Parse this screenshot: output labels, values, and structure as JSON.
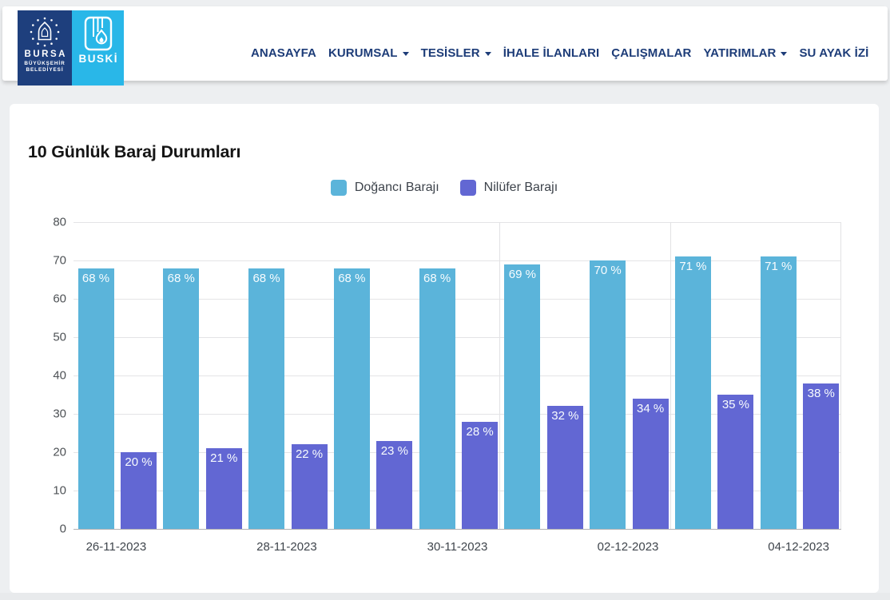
{
  "header": {
    "logo": {
      "bursa": {
        "line1": "BURSA",
        "line2": "BÜYÜKŞEHİR",
        "line3": "BELEDİYESİ",
        "bg_color": "#1e3f7d"
      },
      "buski": {
        "label": "BUSKİ",
        "bg_color": "#29b7e8"
      }
    },
    "nav": {
      "text_color": "#1d3c78",
      "items": [
        {
          "name": "nav-anasayfa",
          "label": "ANASAYFA",
          "has_dropdown": false
        },
        {
          "name": "nav-kurumsal",
          "label": "KURUMSAL",
          "has_dropdown": true
        },
        {
          "name": "nav-tesisler",
          "label": "TESİSLER",
          "has_dropdown": true
        },
        {
          "name": "nav-ihale-ilanlari",
          "label": "İHALE İLANLARI",
          "has_dropdown": false
        },
        {
          "name": "nav-calismalar",
          "label": "ÇALIŞMALAR",
          "has_dropdown": false
        },
        {
          "name": "nav-yatirimlar",
          "label": "YATIRIMLAR",
          "has_dropdown": true
        },
        {
          "name": "nav-su-ayak-izi",
          "label": "SU AYAK İZİ",
          "has_dropdown": false
        }
      ]
    }
  },
  "chart_data": {
    "type": "bar",
    "title": "10 Günlük Baraj Durumları",
    "categories": [
      "26-11-2023",
      "",
      "28-11-2023",
      "",
      "30-11-2023",
      "",
      "02-12-2023",
      "",
      "04-12-2023"
    ],
    "series": [
      {
        "name": "Doğancı Barajı",
        "color": "#5bb4da",
        "values": [
          68,
          68,
          68,
          68,
          68,
          69,
          70,
          71,
          71
        ]
      },
      {
        "name": "Nilüfer Barajı",
        "color": "#6267d3",
        "values": [
          20,
          21,
          22,
          23,
          28,
          32,
          34,
          35,
          38
        ]
      }
    ],
    "value_label_suffix": " %",
    "ylim": [
      0,
      80
    ],
    "y_ticks": [
      0,
      10,
      20,
      30,
      40,
      50,
      60,
      70,
      80
    ],
    "grid": true,
    "legend_position": "top",
    "vertical_boundary_lines_at_group_index": [
      5,
      7
    ]
  }
}
